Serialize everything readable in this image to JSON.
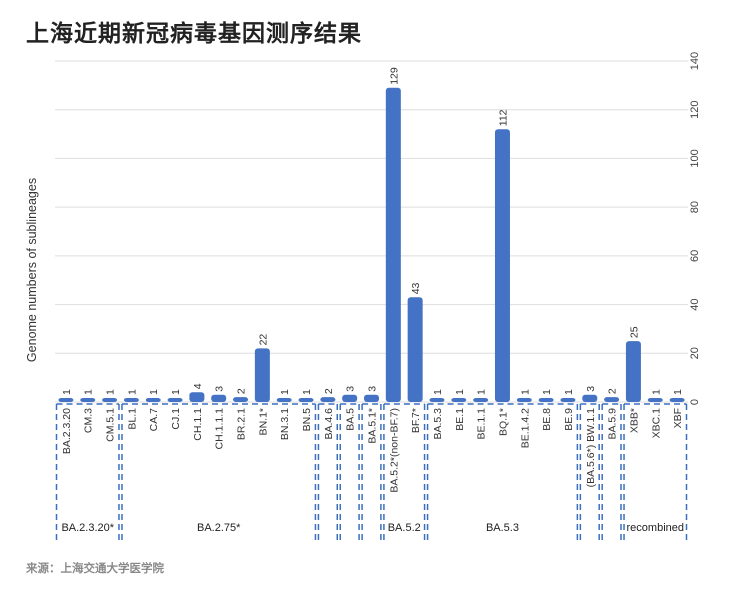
{
  "title": "上海近期新冠病毒基因测序结果",
  "source": "来源：上海交通大学医学院",
  "chart_data": {
    "type": "bar",
    "title": "上海近期新冠病毒基因测序结果",
    "ylabel": "Genome numbers of sublineages",
    "xlabel": "",
    "ylim": [
      0,
      140
    ],
    "yticks": [
      0,
      20,
      40,
      60,
      80,
      100,
      120,
      140
    ],
    "yaxis_position": "right",
    "grid": true,
    "color": "#4472C4",
    "categories": [
      "BA.2.3.20",
      "CM.3",
      "CM.5.1",
      "BL.1",
      "CA.7",
      "CJ.1",
      "CH.1.1",
      "CH.1.1.1",
      "BR.2.1",
      "BN.1*",
      "BN.3.1",
      "BN.5",
      "BA.4.6",
      "BA.5",
      "BA.5.1*",
      "BA.5.2*(non-BF.7)",
      "BF.7*",
      "BA.5.3",
      "BE.1",
      "BE.1.1",
      "BQ.1*",
      "BE.1.4.2",
      "BE.8",
      "BE.9",
      "(BA.5.6*) BW.1.1",
      "BA.5.9",
      "XBB*",
      "XBC.1",
      "XBF"
    ],
    "values": [
      1,
      1,
      1,
      1,
      1,
      1,
      4,
      3,
      2,
      22,
      1,
      1,
      2,
      3,
      3,
      129,
      43,
      1,
      1,
      1,
      112,
      1,
      1,
      1,
      3,
      2,
      25,
      1,
      1
    ],
    "groups": [
      {
        "label": "BA.2.3.20*",
        "from": 0,
        "to": 2
      },
      {
        "label": "BA.2.75*",
        "from": 3,
        "to": 11
      },
      {
        "label": "",
        "from": 12,
        "to": 12
      },
      {
        "label": "",
        "from": 13,
        "to": 13
      },
      {
        "label": "",
        "from": 14,
        "to": 14
      },
      {
        "label": "BA.5.2",
        "from": 15,
        "to": 16
      },
      {
        "label": "BA.5.3",
        "from": 17,
        "to": 23
      },
      {
        "label": "",
        "from": 24,
        "to": 24
      },
      {
        "label": "",
        "from": 25,
        "to": 25
      },
      {
        "label": "recombined",
        "from": 26,
        "to": 28
      }
    ]
  }
}
